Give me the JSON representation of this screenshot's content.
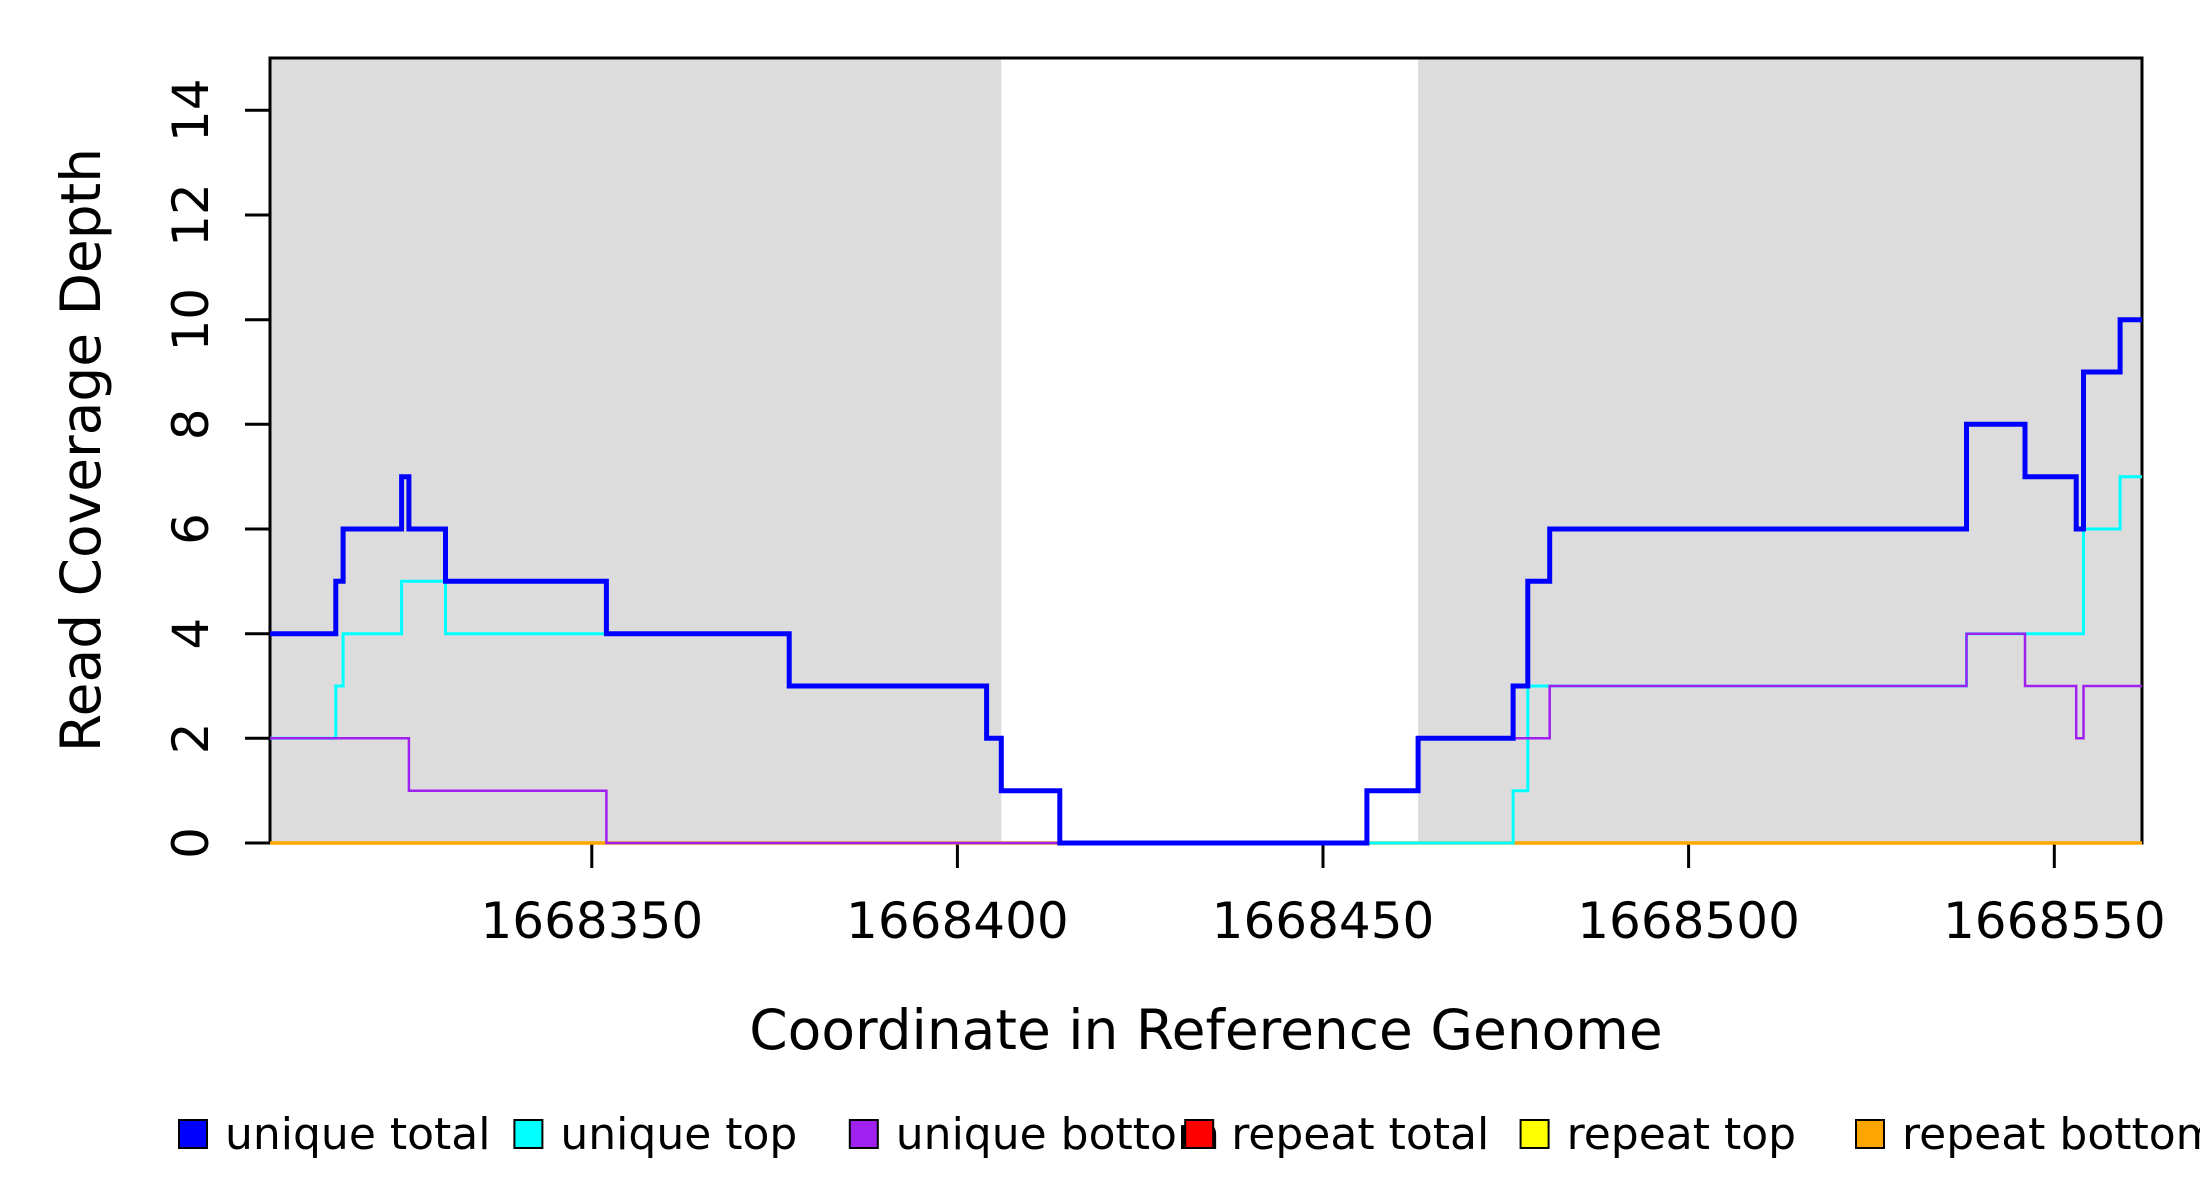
{
  "figure": {
    "background": "#FFFFFF",
    "axis_color": "#000000"
  },
  "chart_data": {
    "type": "line",
    "subtype": "step",
    "title": "",
    "xlabel": "Coordinate in Reference Genome",
    "ylabel": "Read Coverage Depth",
    "xlim": [
      1668306,
      1668562
    ],
    "ylim": [
      0,
      15
    ],
    "xticks": [
      1668350,
      1668400,
      1668450,
      1668500,
      1668550
    ],
    "yticks": [
      0,
      2,
      4,
      6,
      8,
      10,
      12,
      14
    ],
    "grid": false,
    "legend_position": "bottom",
    "shade_color": "#DCDCDC",
    "shaded_regions": [
      [
        1668306,
        1668406
      ],
      [
        1668463,
        1668562
      ]
    ],
    "draw_order": [
      "repeat total",
      "repeat top",
      "repeat bottom",
      "unique top",
      "unique bottom",
      "unique total"
    ],
    "series": [
      {
        "name": "unique total",
        "color": "#0000FF",
        "line_width": 5,
        "steps": [
          [
            1668306,
            4
          ],
          [
            1668315,
            5
          ],
          [
            1668316,
            6
          ],
          [
            1668324,
            7
          ],
          [
            1668325,
            6
          ],
          [
            1668330,
            5
          ],
          [
            1668352,
            4
          ],
          [
            1668377,
            3
          ],
          [
            1668404,
            2
          ],
          [
            1668406,
            1
          ],
          [
            1668414,
            0
          ],
          [
            1668456,
            1
          ],
          [
            1668463,
            2
          ],
          [
            1668476,
            3
          ],
          [
            1668478,
            5
          ],
          [
            1668481,
            6
          ],
          [
            1668538,
            8
          ],
          [
            1668546,
            7
          ],
          [
            1668553,
            6
          ],
          [
            1668554,
            9
          ],
          [
            1668559,
            10
          ]
        ]
      },
      {
        "name": "unique top",
        "color": "#00FFFF",
        "line_width": 3,
        "steps": [
          [
            1668306,
            2
          ],
          [
            1668315,
            3
          ],
          [
            1668316,
            4
          ],
          [
            1668324,
            5
          ],
          [
            1668330,
            4
          ],
          [
            1668377,
            3
          ],
          [
            1668404,
            2
          ],
          [
            1668406,
            1
          ],
          [
            1668414,
            0
          ],
          [
            1668476,
            1
          ],
          [
            1668478,
            3
          ],
          [
            1668538,
            4
          ],
          [
            1668554,
            6
          ],
          [
            1668559,
            7
          ]
        ]
      },
      {
        "name": "unique bottom",
        "color": "#A020F0",
        "line_width": 2.5,
        "steps": [
          [
            1668306,
            2
          ],
          [
            1668325,
            1
          ],
          [
            1668352,
            0
          ],
          [
            1668456,
            1
          ],
          [
            1668463,
            2
          ],
          [
            1668481,
            3
          ],
          [
            1668538,
            4
          ],
          [
            1668546,
            3
          ],
          [
            1668553,
            2
          ],
          [
            1668554,
            3
          ]
        ]
      },
      {
        "name": "repeat total",
        "color": "#FF0000",
        "line_width": 3,
        "steps": [
          [
            1668306,
            0
          ]
        ]
      },
      {
        "name": "repeat top",
        "color": "#FFFF00",
        "line_width": 2.5,
        "steps": [
          [
            1668306,
            0
          ]
        ]
      },
      {
        "name": "repeat bottom",
        "color": "#FFA500",
        "line_width": 3.5,
        "steps": [
          [
            1668306,
            0
          ]
        ]
      }
    ]
  }
}
